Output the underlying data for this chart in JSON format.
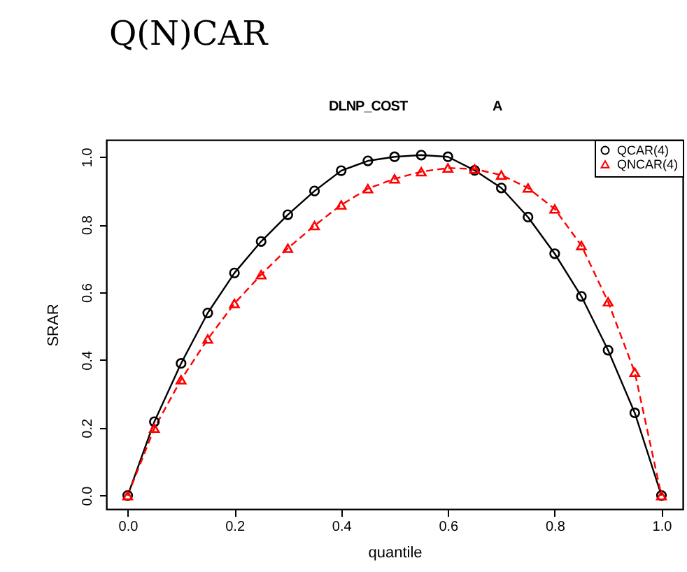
{
  "chart_data": {
    "type": "line",
    "title": "Q(N)CAR",
    "subtitle": "DLNP_COST",
    "annotations": [
      "A"
    ],
    "xlabel": "quantile",
    "ylabel": "SRAR",
    "x": [
      0,
      0.05,
      0.1,
      0.15,
      0.2,
      0.25,
      0.3,
      0.35,
      0.4,
      0.45,
      0.5,
      0.55,
      0.6,
      0.65,
      0.7,
      0.75,
      0.8,
      0.85,
      0.9,
      0.95,
      1.0
    ],
    "series": [
      {
        "name": "QCAR(4)",
        "color": "#000000",
        "marker": "circle",
        "line_style": "solid",
        "values": [
          0,
          0.218,
          0.39,
          0.539,
          0.657,
          0.75,
          0.829,
          0.899,
          0.959,
          0.988,
          1.0,
          1.005,
          1.0,
          0.96,
          0.908,
          0.822,
          0.714,
          0.588,
          0.429,
          0.244,
          0
        ]
      },
      {
        "name": "QNCAR(4)",
        "color": "#ff0000",
        "marker": "triangle",
        "line_style": "dashed",
        "values": [
          0,
          0.199,
          0.342,
          0.462,
          0.567,
          0.652,
          0.73,
          0.797,
          0.858,
          0.906,
          0.935,
          0.956,
          0.967,
          0.964,
          0.946,
          0.908,
          0.846,
          0.738,
          0.572,
          0.364,
          0
        ]
      }
    ],
    "xlim": [
      -0.04,
      1.04
    ],
    "ylim": [
      -0.04,
      1.05
    ],
    "xticks": [
      {
        "value": 0,
        "label": "0.0"
      },
      0.2,
      0.4,
      0.6,
      0.8,
      {
        "value": 1,
        "label": "1.0"
      }
    ],
    "yticks": [
      {
        "value": 0,
        "label": "0.0"
      },
      0.2,
      0.4,
      0.6,
      0.8,
      {
        "value": 1,
        "label": "1.0"
      }
    ],
    "legend": "top right",
    "grid": false
  }
}
